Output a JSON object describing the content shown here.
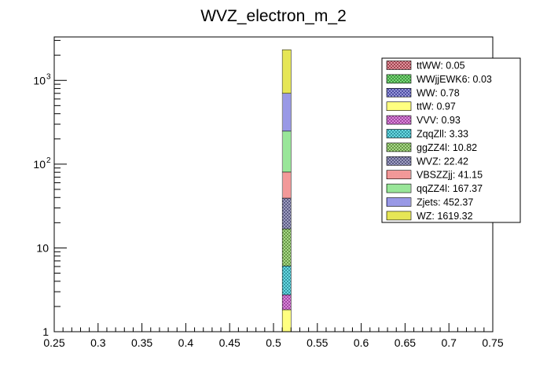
{
  "chart_data": {
    "type": "bar",
    "stacked": true,
    "title": "WVZ_electron_m_2",
    "xlabel": "",
    "ylabel": "",
    "xlim": [
      0.25,
      0.75
    ],
    "ylim": [
      1,
      3300
    ],
    "yscale": "log",
    "bin": [
      0.51,
      0.52
    ],
    "x_ticks": [
      "0.25",
      "0.3",
      "0.35",
      "0.4",
      "0.45",
      "0.5",
      "0.55",
      "0.6",
      "0.65",
      "0.7",
      "0.75"
    ],
    "y_ticks": [
      {
        "value": 1,
        "label": "1"
      },
      {
        "value": 10,
        "label": "10"
      },
      {
        "value": 100,
        "label": "10",
        "exp": "2"
      },
      {
        "value": 1000,
        "label": "10",
        "exp": "3"
      }
    ],
    "series": [
      {
        "name": "ttWW",
        "value": 0.05,
        "legend": "ttWW: 0.05",
        "fill": "#e8a0a8",
        "hatch": "cross",
        "stroke": "#7a1020"
      },
      {
        "name": "WWjjEWK6",
        "value": 0.03,
        "legend": "WWjjEWK6: 0.03",
        "fill": "#80e080",
        "hatch": "cross",
        "stroke": "#207020"
      },
      {
        "name": "WW",
        "value": 0.78,
        "legend": "WW: 0.78",
        "fill": "#a0a0e0",
        "hatch": "cross",
        "stroke": "#202080"
      },
      {
        "name": "ttW",
        "value": 0.97,
        "legend": "ttW: 0.97",
        "fill": "#ffff80",
        "hatch": "none",
        "stroke": "#808000"
      },
      {
        "name": "VVV",
        "value": 0.93,
        "legend": "VVV: 0.93",
        "fill": "#e090e0",
        "hatch": "cross",
        "stroke": "#802080"
      },
      {
        "name": "ZqqZll",
        "value": 3.33,
        "legend": "ZqqZll: 3.33",
        "fill": "#70e0e8",
        "hatch": "cross",
        "stroke": "#107080"
      },
      {
        "name": "ggZZ4l",
        "value": 10.82,
        "legend": "ggZZ4l: 10.82",
        "fill": "#b0e090",
        "hatch": "cross",
        "stroke": "#407020"
      },
      {
        "name": "WVZ",
        "value": 22.42,
        "legend": "WVZ: 22.42",
        "fill": "#a8a8c8",
        "hatch": "cross",
        "stroke": "#303060"
      },
      {
        "name": "VBSZZjj",
        "value": 41.15,
        "legend": "VBSZZjj: 41.15",
        "fill": "#ffffff",
        "hatch": "vertical",
        "stroke": "#e00000"
      },
      {
        "name": "qqZZ4l",
        "value": 167.37,
        "legend": "qqZZ4l: 167.37",
        "fill": "#ffffff",
        "hatch": "vertical",
        "stroke": "#00c000"
      },
      {
        "name": "Zjets",
        "value": 452.37,
        "legend": "Zjets: 452.37",
        "fill": "#ffffff",
        "hatch": "vertical",
        "stroke": "#0000c0"
      },
      {
        "name": "WZ",
        "value": 1619.32,
        "legend": "WZ: 1619.32",
        "fill": "#ffff90",
        "hatch": "vertical",
        "stroke": "#c0c000"
      }
    ]
  }
}
